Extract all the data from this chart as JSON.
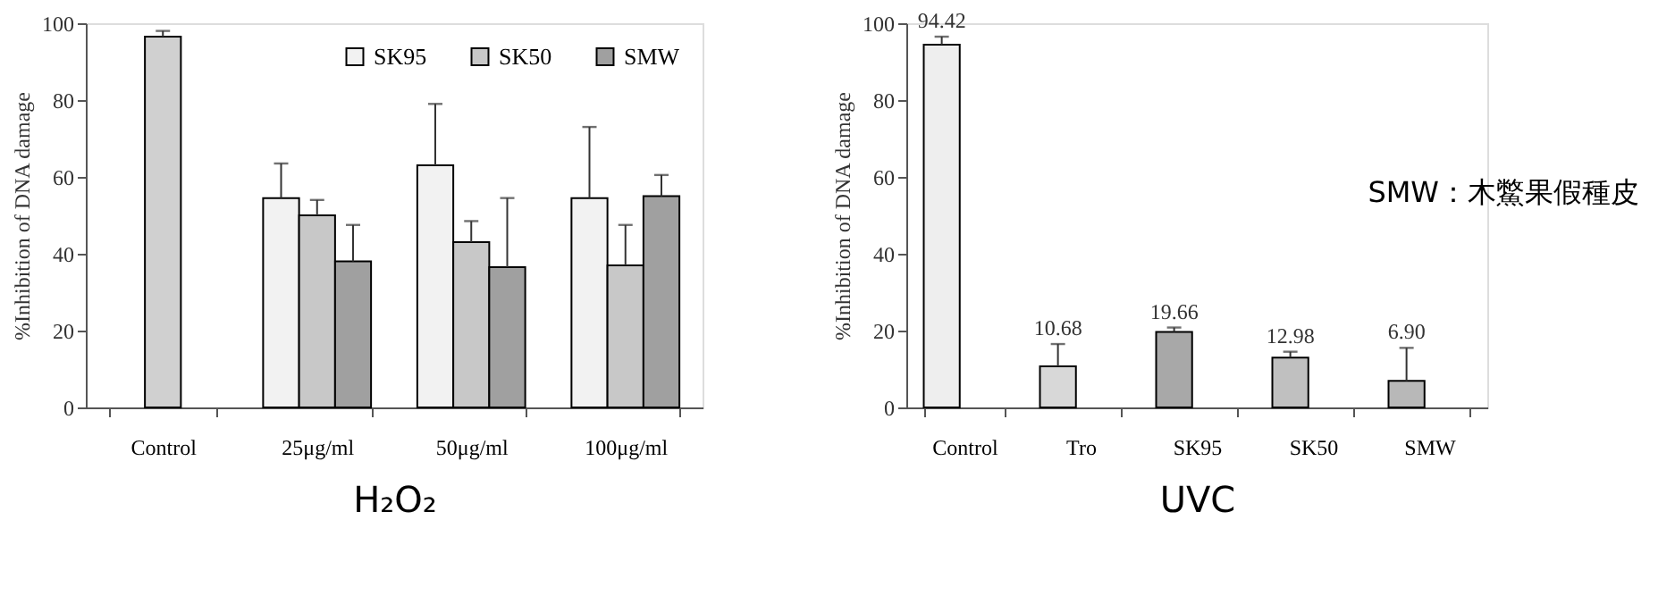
{
  "chart_data": [
    {
      "type": "bar",
      "categories": [
        "Control",
        "25μg/ml",
        "50μg/ml",
        "100μg/ml"
      ],
      "ylabel": "%Inhibition of DNA damage",
      "xlabel": "H₂O₂",
      "ylim": [
        0,
        100
      ],
      "yticks": [
        0,
        20,
        40,
        60,
        80,
        100
      ],
      "grid": false,
      "legend": "top right",
      "series": [
        {
          "color": "#d0d0d0",
          "values": [
            96.5,
            null,
            null,
            null
          ],
          "errors": [
            [
              96.5,
              98
            ],
            null,
            null,
            null
          ]
        },
        {
          "name": "SK95",
          "color": "#f2f2f2",
          "values": [
            null,
            54.5,
            63,
            54.5
          ],
          "errors": [
            null,
            [
              54.5,
              63.5
            ],
            [
              63,
              79
            ],
            [
              54.5,
              73
            ]
          ]
        },
        {
          "name": "SK50",
          "color": "#c8c8c8",
          "values": [
            null,
            50,
            43,
            37
          ],
          "errors": [
            null,
            [
              50,
              54
            ],
            [
              43,
              48.5
            ],
            [
              37,
              47.5
            ]
          ]
        },
        {
          "name": "SMW",
          "color": "#a0a0a0",
          "values": [
            null,
            38,
            36.5,
            55
          ],
          "errors": [
            null,
            [
              38,
              47.5
            ],
            [
              36.5,
              54.5
            ],
            [
              55,
              60.5
            ]
          ]
        }
      ]
    },
    {
      "type": "bar",
      "categories": [
        "Control",
        "Tro",
        "SK95",
        "SK50",
        "SMW"
      ],
      "ylabel": "%Inhibition of DNA damage",
      "xlabel": "UVC",
      "ylim": [
        0,
        100
      ],
      "yticks": [
        0,
        20,
        40,
        60,
        80,
        100
      ],
      "grid": false,
      "values": [
        94.42,
        10.68,
        19.66,
        12.98,
        6.9
      ],
      "value_labels": [
        "94.42",
        "10.68",
        "19.66",
        "12.98",
        "6.90"
      ],
      "colors": [
        "#eeeeee",
        "#d8d8d8",
        "#a8a8a8",
        "#c0c0c0",
        "#b8b8b8"
      ],
      "errors": [
        [
          94.42,
          96.5
        ],
        [
          10.68,
          16.5
        ],
        [
          19.66,
          20.8
        ],
        [
          12.98,
          14.5
        ],
        [
          6.9,
          15.5
        ]
      ],
      "annotations": [
        "SMW：木鱉果假種皮"
      ]
    }
  ]
}
